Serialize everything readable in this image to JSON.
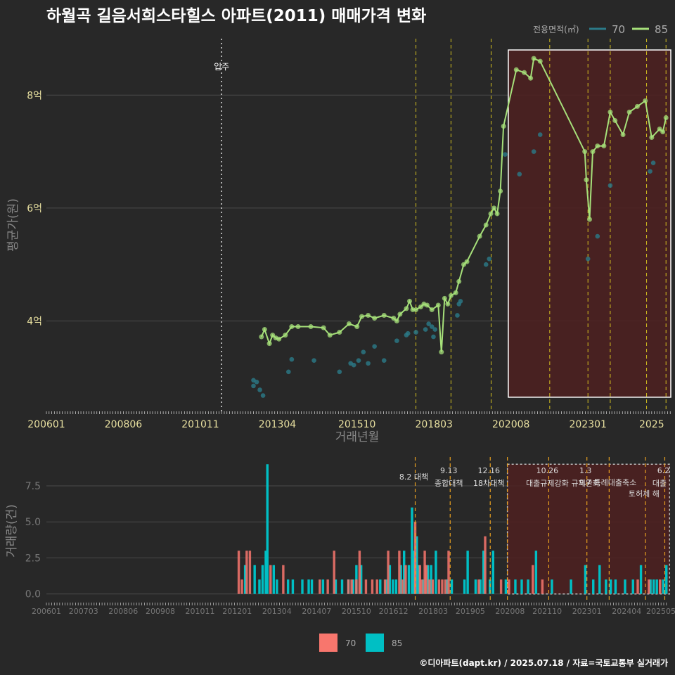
{
  "title": "하월곡 길음서희스타힐스 아파트(2011) 매매가격 변화",
  "credit": "©디아파트(dapt.kr) / 2025.07.18 / 자료=국토교통부 실거래가",
  "legend_top": {
    "title": "전용면적(㎡)",
    "items": [
      "70",
      "85"
    ]
  },
  "legend_bottom": {
    "items": [
      "70",
      "85"
    ]
  },
  "colors": {
    "bg": "#282828",
    "grid": "#4a4a4a",
    "s70": "#2b7a88",
    "s85": "#a6e07a",
    "bar70": "#f8766d",
    "bar85": "#00bfc4",
    "policy": "#d4c020",
    "band": "#4e2020",
    "tick": "#e8e0a0"
  },
  "chart_data": [
    {
      "type": "line",
      "title": "하월곡 길음서희스타힐스 아파트(2011) 매매가격 변화",
      "xlabel": "거래년월",
      "ylabel": "평균가(원)",
      "x_ticks": [
        "200601",
        "200806",
        "201011",
        "201304",
        "201510",
        "201803",
        "202008",
        "202301",
        "2025"
      ],
      "y_ticks": [
        {
          "v": 4,
          "label": "4억"
        },
        {
          "v": 6,
          "label": "6억"
        },
        {
          "v": 8,
          "label": "8억"
        }
      ],
      "ylim": [
        2.4,
        9.0
      ],
      "move_in": {
        "date": "2011.5",
        "label": "입주"
      },
      "highlight": {
        "x": [
          "2020.5",
          "2025.6"
        ],
        "y": [
          2.65,
          8.8
        ]
      },
      "policy_lines": [
        "2017.6",
        "2018.7",
        "2019.96",
        "2021.8",
        "2023.0",
        "2023.7",
        "2024.84",
        "2025.45"
      ],
      "series": [
        {
          "name": "70",
          "points": [
            [
              "2012.5",
              2.95
            ],
            [
              "2012.5",
              2.85
            ],
            [
              "2012.6",
              2.92
            ],
            [
              "2012.7",
              2.78
            ],
            [
              "2012.8",
              2.68
            ],
            [
              "2013.6",
              3.1
            ],
            [
              "2013.7",
              3.32
            ],
            [
              "2014.4",
              3.3
            ],
            [
              "2015.2",
              3.1
            ],
            [
              "2015.55",
              3.25
            ],
            [
              "2015.65",
              3.22
            ],
            [
              "2015.8",
              3.3
            ],
            [
              "2015.95",
              3.45
            ],
            [
              "2016.1",
              3.25
            ],
            [
              "2016.3",
              3.55
            ],
            [
              "2016.6",
              3.3
            ],
            [
              "2017.0",
              3.65
            ],
            [
              "2017.3",
              3.75
            ],
            [
              "2017.35",
              3.78
            ],
            [
              "2017.6",
              3.8
            ],
            [
              "2017.9",
              3.85
            ],
            [
              "2018.0",
              3.95
            ],
            [
              "2018.1",
              3.9
            ],
            [
              "2018.15",
              3.72
            ],
            [
              "2018.2",
              3.85
            ],
            [
              "2018.9",
              4.1
            ],
            [
              "2018.95",
              4.3
            ],
            [
              "2019.0",
              4.35
            ],
            [
              "2019.8",
              5.0
            ],
            [
              "2019.9",
              5.1
            ],
            [
              "2020.4",
              6.95
            ],
            [
              "2020.85",
              6.6
            ],
            [
              "2021.3",
              7.0
            ],
            [
              "2021.5",
              7.3
            ],
            [
              "2023.0",
              5.1
            ],
            [
              "2023.3",
              5.5
            ],
            [
              "2023.7",
              6.4
            ],
            [
              "2024.95",
              6.65
            ],
            [
              "2025.05",
              6.8
            ]
          ]
        },
        {
          "name": "85",
          "points": [
            [
              "2012.75",
              3.72
            ],
            [
              "2012.85",
              3.85
            ],
            [
              "2013.0",
              3.6
            ],
            [
              "2013.1",
              3.75
            ],
            [
              "2013.2",
              3.7
            ],
            [
              "2013.3",
              3.68
            ],
            [
              "2013.5",
              3.75
            ],
            [
              "2013.7",
              3.9
            ],
            [
              "2013.9",
              3.9
            ],
            [
              "2014.3",
              3.9
            ],
            [
              "2014.7",
              3.88
            ],
            [
              "2014.9",
              3.75
            ],
            [
              "2015.2",
              3.8
            ],
            [
              "2015.5",
              3.95
            ],
            [
              "2015.75",
              3.9
            ],
            [
              "2015.9",
              4.08
            ],
            [
              "2016.1",
              4.1
            ],
            [
              "2016.3",
              4.05
            ],
            [
              "2016.6",
              4.1
            ],
            [
              "2016.9",
              4.05
            ],
            [
              "2017.0",
              4.0
            ],
            [
              "2017.1",
              4.12
            ],
            [
              "2017.3",
              4.22
            ],
            [
              "2017.4",
              4.35
            ],
            [
              "2017.5",
              4.2
            ],
            [
              "2017.6",
              4.2
            ],
            [
              "2017.75",
              4.25
            ],
            [
              "2017.85",
              4.3
            ],
            [
              "2017.95",
              4.28
            ],
            [
              "2018.1",
              4.2
            ],
            [
              "2018.3",
              4.28
            ],
            [
              "2018.4",
              3.45
            ],
            [
              "2018.5",
              4.4
            ],
            [
              "2018.6",
              4.3
            ],
            [
              "2018.7",
              4.45
            ],
            [
              "2018.85",
              4.5
            ],
            [
              "2018.95",
              4.7
            ],
            [
              "2019.1",
              5.0
            ],
            [
              "2019.2",
              5.05
            ],
            [
              "2019.6",
              5.5
            ],
            [
              "2019.8",
              5.7
            ],
            [
              "2019.95",
              5.9
            ],
            [
              "2020.05",
              6.0
            ],
            [
              "2020.15",
              5.9
            ],
            [
              "2020.25",
              6.3
            ],
            [
              "2020.35",
              7.45
            ],
            [
              "2020.75",
              8.45
            ],
            [
              "2021.0",
              8.4
            ],
            [
              "2021.2",
              8.3
            ],
            [
              "2021.3",
              8.65
            ],
            [
              "2021.5",
              8.6
            ],
            [
              "2022.9",
              7.0
            ],
            [
              "2022.95",
              6.5
            ],
            [
              "2023.05",
              5.8
            ],
            [
              "2023.15",
              7.0
            ],
            [
              "2023.3",
              7.1
            ],
            [
              "2023.5",
              7.1
            ],
            [
              "2023.7",
              7.7
            ],
            [
              "2023.85",
              7.55
            ],
            [
              "2024.1",
              7.3
            ],
            [
              "2024.3",
              7.7
            ],
            [
              "2024.55",
              7.8
            ],
            [
              "2024.8",
              7.9
            ],
            [
              "2025.0",
              7.25
            ],
            [
              "2025.25",
              7.4
            ],
            [
              "2025.35",
              7.35
            ],
            [
              "2025.45",
              7.6
            ]
          ]
        }
      ]
    },
    {
      "type": "bar",
      "ylabel": "거래량(건)",
      "x_ticks": [
        "200601",
        "200703",
        "200806",
        "200908",
        "201011",
        "201201",
        "201304",
        "201407",
        "201510",
        "201612",
        "201803",
        "201905",
        "202008",
        "202110",
        "202301",
        "202404",
        "202505"
      ],
      "y_ticks": [
        {
          "v": 0,
          "label": "0.0"
        },
        {
          "v": 2.5,
          "label": "2.5"
        },
        {
          "v": 5,
          "label": "5.0"
        },
        {
          "v": 7.5,
          "label": "7.5"
        }
      ],
      "ylim": [
        -0.6,
        9.5
      ],
      "highlight": {
        "x": [
          "2020.5",
          "2025.6"
        ],
        "y": [
          0,
          9
        ]
      },
      "policy_events": [
        {
          "x": "2017.6",
          "date": "8.2",
          "name": "대책",
          "inline": true
        },
        {
          "x": "2018.7",
          "date": "9.13",
          "name": "종합대책"
        },
        {
          "x": "2019.96",
          "date": "12.16",
          "name": "18차대책"
        },
        {
          "x": "2020.5"
        },
        {
          "x": "2021.8",
          "date": "10.26",
          "name": "대출규제강화"
        },
        {
          "x": "2023.0",
          "date": "1.3",
          "name": "규제완화"
        },
        {
          "x": "2023.7",
          "date": "9.7",
          "name": "특례대출축소",
          "inline": true
        },
        {
          "x": "2024.84",
          "date": "",
          "name": "토허제 해"
        },
        {
          "x": "2025.45",
          "date": "6.2",
          "name": "대출"
        }
      ],
      "bars70": [
        [
          "2012.05",
          3
        ],
        [
          "2012.15",
          1
        ],
        [
          "2012.3",
          3
        ],
        [
          "2012.4",
          3
        ],
        [
          "2013.05",
          2
        ],
        [
          "2013.45",
          2
        ],
        [
          "2014.6",
          1
        ],
        [
          "2014.85",
          1
        ],
        [
          "2015.05",
          3
        ],
        [
          "2015.5",
          1
        ],
        [
          "2015.6",
          1
        ],
        [
          "2015.75",
          1
        ],
        [
          "2015.85",
          3
        ],
        [
          "2016.05",
          1
        ],
        [
          "2016.25",
          1
        ],
        [
          "2016.4",
          1
        ],
        [
          "2016.65",
          1
        ],
        [
          "2016.75",
          3
        ],
        [
          "2017.1",
          3
        ],
        [
          "2017.2",
          1
        ],
        [
          "2017.3",
          2
        ],
        [
          "2017.6",
          5
        ],
        [
          "2017.75",
          2
        ],
        [
          "2017.8",
          1
        ],
        [
          "2017.9",
          3
        ],
        [
          "2017.95",
          2
        ],
        [
          "2018.05",
          1
        ],
        [
          "2018.15",
          1
        ],
        [
          "2018.35",
          1
        ],
        [
          "2018.45",
          1
        ],
        [
          "2018.55",
          1
        ],
        [
          "2018.65",
          3
        ],
        [
          "2019.6",
          1
        ],
        [
          "2019.8",
          4
        ],
        [
          "2020.3",
          1
        ],
        [
          "2020.55",
          1
        ],
        [
          "2021.3",
          2
        ],
        [
          "2021.6",
          1
        ],
        [
          "2024.6",
          1
        ],
        [
          "2024.95",
          1
        ],
        [
          "2025.3",
          1
        ]
      ],
      "bars85": [
        [
          "2012.25",
          2
        ],
        [
          "2012.55",
          2
        ],
        [
          "2012.7",
          1
        ],
        [
          "2012.8",
          2
        ],
        [
          "2012.9",
          3
        ],
        [
          "2012.95",
          9
        ],
        [
          "2013.15",
          2
        ],
        [
          "2013.25",
          1
        ],
        [
          "2013.6",
          1
        ],
        [
          "2013.75",
          1
        ],
        [
          "2014.05",
          1
        ],
        [
          "2014.25",
          1
        ],
        [
          "2014.35",
          1
        ],
        [
          "2014.7",
          1
        ],
        [
          "2015.1",
          1
        ],
        [
          "2015.3",
          1
        ],
        [
          "2015.5",
          1
        ],
        [
          "2015.65",
          1
        ],
        [
          "2015.75",
          2
        ],
        [
          "2015.9",
          2
        ],
        [
          "2016.5",
          1
        ],
        [
          "2016.7",
          1
        ],
        [
          "2016.8",
          2
        ],
        [
          "2016.9",
          1
        ],
        [
          "2017.0",
          1
        ],
        [
          "2017.15",
          2
        ],
        [
          "2017.25",
          3
        ],
        [
          "2017.4",
          2
        ],
        [
          "2017.5",
          6
        ],
        [
          "2017.55",
          3
        ],
        [
          "2017.65",
          4
        ],
        [
          "2017.7",
          2
        ],
        [
          "2017.85",
          1
        ],
        [
          "2018.0",
          2
        ],
        [
          "2018.1",
          2
        ],
        [
          "2018.25",
          3
        ],
        [
          "2018.6",
          1
        ],
        [
          "2018.75",
          1
        ],
        [
          "2019.15",
          1
        ],
        [
          "2019.25",
          3
        ],
        [
          "2019.5",
          1
        ],
        [
          "2019.65",
          1
        ],
        [
          "2019.75",
          3
        ],
        [
          "2019.95",
          1
        ],
        [
          "2020.05",
          3
        ],
        [
          "2020.45",
          1
        ],
        [
          "2020.75",
          1
        ],
        [
          "2020.95",
          1
        ],
        [
          "2021.15",
          1
        ],
        [
          "2021.4",
          3
        ],
        [
          "2021.9",
          1
        ],
        [
          "2022.5",
          1
        ],
        [
          "2022.95",
          2
        ],
        [
          "2023.2",
          1
        ],
        [
          "2023.4",
          2
        ],
        [
          "2023.6",
          1
        ],
        [
          "2023.75",
          1
        ],
        [
          "2023.9",
          1
        ],
        [
          "2024.2",
          1
        ],
        [
          "2024.45",
          1
        ],
        [
          "2024.7",
          2
        ],
        [
          "2025.0",
          1
        ],
        [
          "2025.1",
          1
        ],
        [
          "2025.2",
          1
        ],
        [
          "2025.4",
          1
        ],
        [
          "2025.5",
          2
        ]
      ]
    }
  ]
}
